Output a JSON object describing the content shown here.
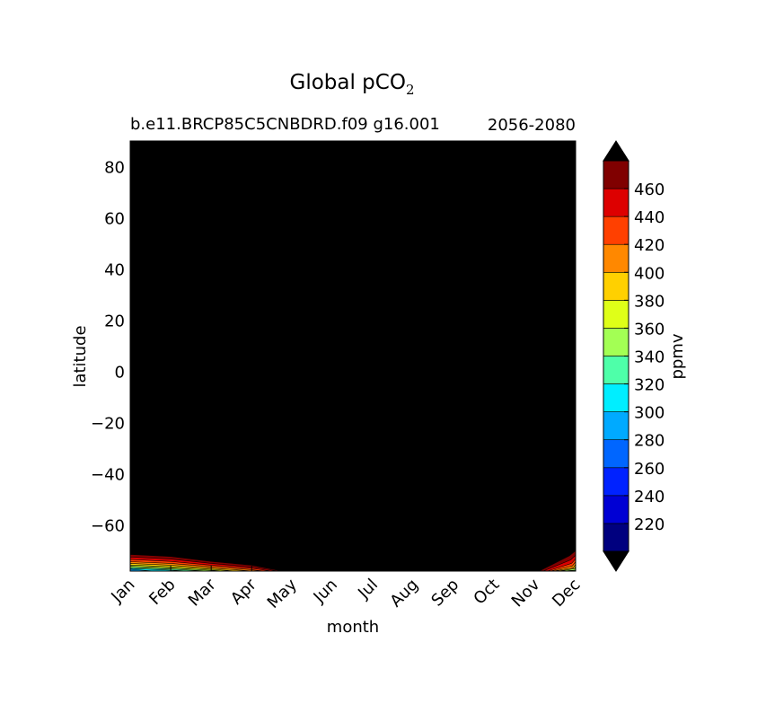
{
  "chart_data": {
    "type": "heatmap",
    "title_main": "Global pCO",
    "title_sub": "2",
    "subtitle_left": "b.e11.BRCP85C5CNBDRD.f09 g16.001",
    "subtitle_right": "2056-2080",
    "xlabel": "month",
    "ylabel": "latitude",
    "x_categories": [
      "Jan",
      "Feb",
      "Mar",
      "Apr",
      "May",
      "Jun",
      "Jul",
      "Aug",
      "Sep",
      "Oct",
      "Nov",
      "Dec"
    ],
    "xlim": [
      0,
      11
    ],
    "ylim": [
      -78,
      90
    ],
    "y_ticks": [
      -60,
      -40,
      -20,
      0,
      20,
      40,
      60,
      80
    ],
    "y_tick_labels": [
      "−60",
      "−40",
      "−20",
      "0",
      "20",
      "40",
      "60",
      "80"
    ],
    "plot_background": "#000000",
    "colorbar": {
      "label": "ppmv",
      "levels": [
        200,
        220,
        240,
        260,
        280,
        300,
        320,
        340,
        360,
        380,
        400,
        420,
        440,
        460,
        480
      ],
      "tick_labels": [
        "220",
        "240",
        "260",
        "280",
        "300",
        "320",
        "340",
        "360",
        "380",
        "400",
        "420",
        "440",
        "460"
      ],
      "colors": [
        "#00007f",
        "#0000d4",
        "#0022ff",
        "#0066ff",
        "#00aaff",
        "#00eeff",
        "#4effa9",
        "#a3ff54",
        "#dfff18",
        "#ffd000",
        "#ff8800",
        "#ff4000",
        "#dd0000",
        "#800000"
      ],
      "extend_colors": [
        "#000000",
        "#000000"
      ]
    },
    "contour_bands": [
      {
        "level": 460,
        "color": "#800000",
        "lat": [
          -71.5,
          -72.3,
          -74.2,
          -75.7,
          -78.0,
          -78.0,
          -72.0,
          -70.0
        ],
        "month": [
          0,
          1,
          2,
          3,
          3.75,
          10.1,
          10.85,
          11
        ]
      },
      {
        "level": 440,
        "color": "#dd0000",
        "lat": [
          -72.5,
          -73.3,
          -75.0,
          -76.4,
          -78.0,
          -78.0,
          -73.6,
          -71.8
        ],
        "month": [
          0,
          1,
          2,
          3,
          3.65,
          10.2,
          10.88,
          11
        ]
      },
      {
        "level": 420,
        "color": "#ff4000",
        "lat": [
          -73.4,
          -74.2,
          -75.7,
          -76.9,
          -78.0,
          -78.0,
          -75.0,
          -73.2
        ],
        "month": [
          0,
          1,
          2,
          3,
          3.5,
          10.3,
          10.9,
          11
        ]
      },
      {
        "level": 400,
        "color": "#ff8800",
        "lat": [
          -74.3,
          -75.0,
          -76.3,
          -77.4,
          -78.0,
          -78.0,
          -76.0,
          -74.4
        ],
        "month": [
          0,
          1,
          2,
          2.95,
          3.3,
          10.38,
          10.92,
          11
        ]
      },
      {
        "level": 380,
        "color": "#ffd000",
        "lat": [
          -75.0,
          -75.7,
          -76.9,
          -77.7,
          -78.0,
          -78.0,
          -76.8,
          -75.4
        ],
        "month": [
          0,
          1,
          2,
          2.75,
          3.0,
          10.45,
          10.94,
          11
        ]
      },
      {
        "level": 360,
        "color": "#dfff18",
        "lat": [
          -75.6,
          -76.3,
          -77.3,
          -78.0,
          -78.0,
          -77.4,
          -76.2
        ],
        "month": [
          0,
          1,
          2,
          2.6,
          10.52,
          10.96,
          11
        ]
      },
      {
        "level": 340,
        "color": "#a3ff54",
        "lat": [
          -76.1,
          -76.8,
          -77.7,
          -78.0,
          -78.0,
          -77.0
        ],
        "month": [
          0,
          1,
          2,
          2.3,
          10.6,
          11
        ]
      },
      {
        "level": 320,
        "color": "#4effa9",
        "lat": [
          -76.6,
          -77.2,
          -78.0,
          -78.0,
          -77.6
        ],
        "month": [
          0,
          1,
          1.9,
          10.7,
          11
        ]
      },
      {
        "level": 300,
        "color": "#00eeff",
        "lat": [
          -77.0,
          -77.6,
          -78.0,
          -78.0
        ],
        "month": [
          0,
          1,
          1.4,
          11
        ]
      },
      {
        "level": 280,
        "color": "#00aaff",
        "lat": [
          -77.3,
          -78.0,
          -78.0
        ],
        "month": [
          0,
          0.6,
          11
        ]
      }
    ]
  }
}
